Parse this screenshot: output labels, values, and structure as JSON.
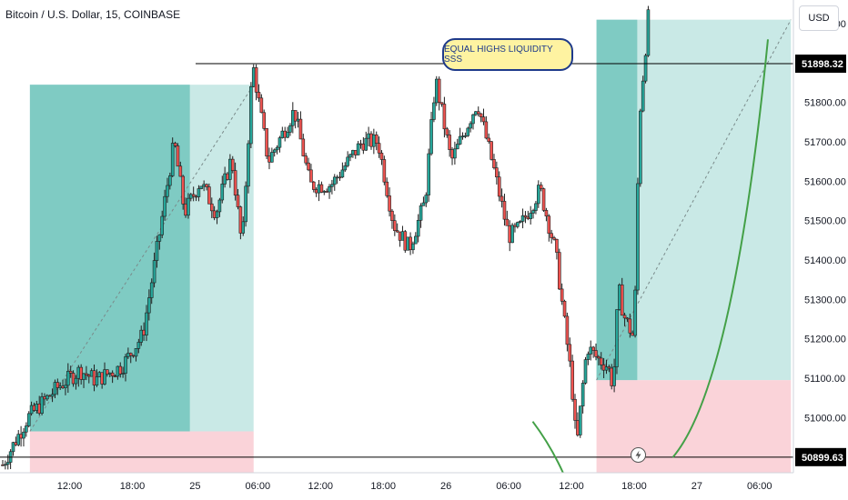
{
  "header": {
    "symbol_title": "Bitcoin / U.S. Dollar, 15, COINBASE",
    "currency_button": "USD"
  },
  "annotation": {
    "text": "EQUAL HIGHS LIQUIDITY SSS"
  },
  "colors": {
    "bull": "#26a69a",
    "bear": "#ef5350",
    "candle": "#1e1e1e",
    "profit_zone": "#26a69a",
    "loss_zone": "#f7b6c0",
    "curve": "#43a047",
    "level_line": "#000000"
  },
  "chart_data": {
    "type": "candlestick",
    "title": "Bitcoin / U.S. Dollar, 15, COINBASE",
    "ylim": [
      50860,
      52060
    ],
    "y_ticks": [
      51000,
      51100,
      51200,
      51300,
      51400,
      51500,
      51600,
      51700,
      51800,
      52000
    ],
    "y_tick_labels": [
      "51000.00",
      "51100.00",
      "51200.00",
      "51300.00",
      "51400.00",
      "51500.00",
      "51600.00",
      "51700.00",
      "51800.00",
      "52000.00"
    ],
    "x_tick_labels": [
      "12:00",
      "18:00",
      "25",
      "06:00",
      "12:00",
      "18:00",
      "26",
      "06:00",
      "12:00",
      "18:00",
      "27",
      "06:00"
    ],
    "x_ticks_hours": [
      12,
      18,
      24,
      30,
      36,
      42,
      48,
      54,
      60,
      66,
      72,
      78
    ],
    "xlim_hours": [
      5.6,
      81.5
    ],
    "levels": [
      {
        "name": "equal-highs-level",
        "price": 51898.32,
        "label": "51898.32"
      },
      {
        "name": "low-level",
        "price": 50899.63,
        "label": "50899.63"
      }
    ],
    "positions": [
      {
        "name": "first-trade",
        "start_hour": 8.2,
        "end_hour": 29.6,
        "entry": 50965,
        "target": 51845,
        "fill_end_hour": 23.5
      },
      {
        "name": "second-trade",
        "start_hour": 62.4,
        "end_hour": 81.0,
        "entry": 51095,
        "target": 52010,
        "fill_end_hour": 66.3
      }
    ],
    "candles_anchor_hours": [
      5.6,
      8,
      11,
      13,
      14.5,
      17,
      19,
      20.5,
      22,
      23,
      24.5,
      26,
      27.5,
      28.5,
      29.5,
      31,
      33.5,
      35,
      37,
      40,
      41.5,
      43,
      44.5,
      46,
      47,
      48.5,
      51,
      52.5,
      54,
      55,
      57,
      58.5,
      60,
      60.5,
      61,
      61.5,
      62.5,
      63.5,
      64,
      64.5,
      65,
      66,
      66.5,
      67.5
    ],
    "candles_anchor_close": [
      50880,
      51000,
      51080,
      51120,
      51095,
      51130,
      51210,
      51450,
      51700,
      51520,
      51600,
      51520,
      51660,
      51430,
      51900,
      51650,
      51780,
      51590,
      51590,
      51700,
      51700,
      51490,
      51430,
      51550,
      51860,
      51650,
      51800,
      51640,
      51460,
      51480,
      51580,
      51420,
      51100,
      50920,
      51060,
      51180,
      51150,
      51130,
      51080,
      51330,
      51260,
      51200,
      51760,
      52060
    ]
  }
}
